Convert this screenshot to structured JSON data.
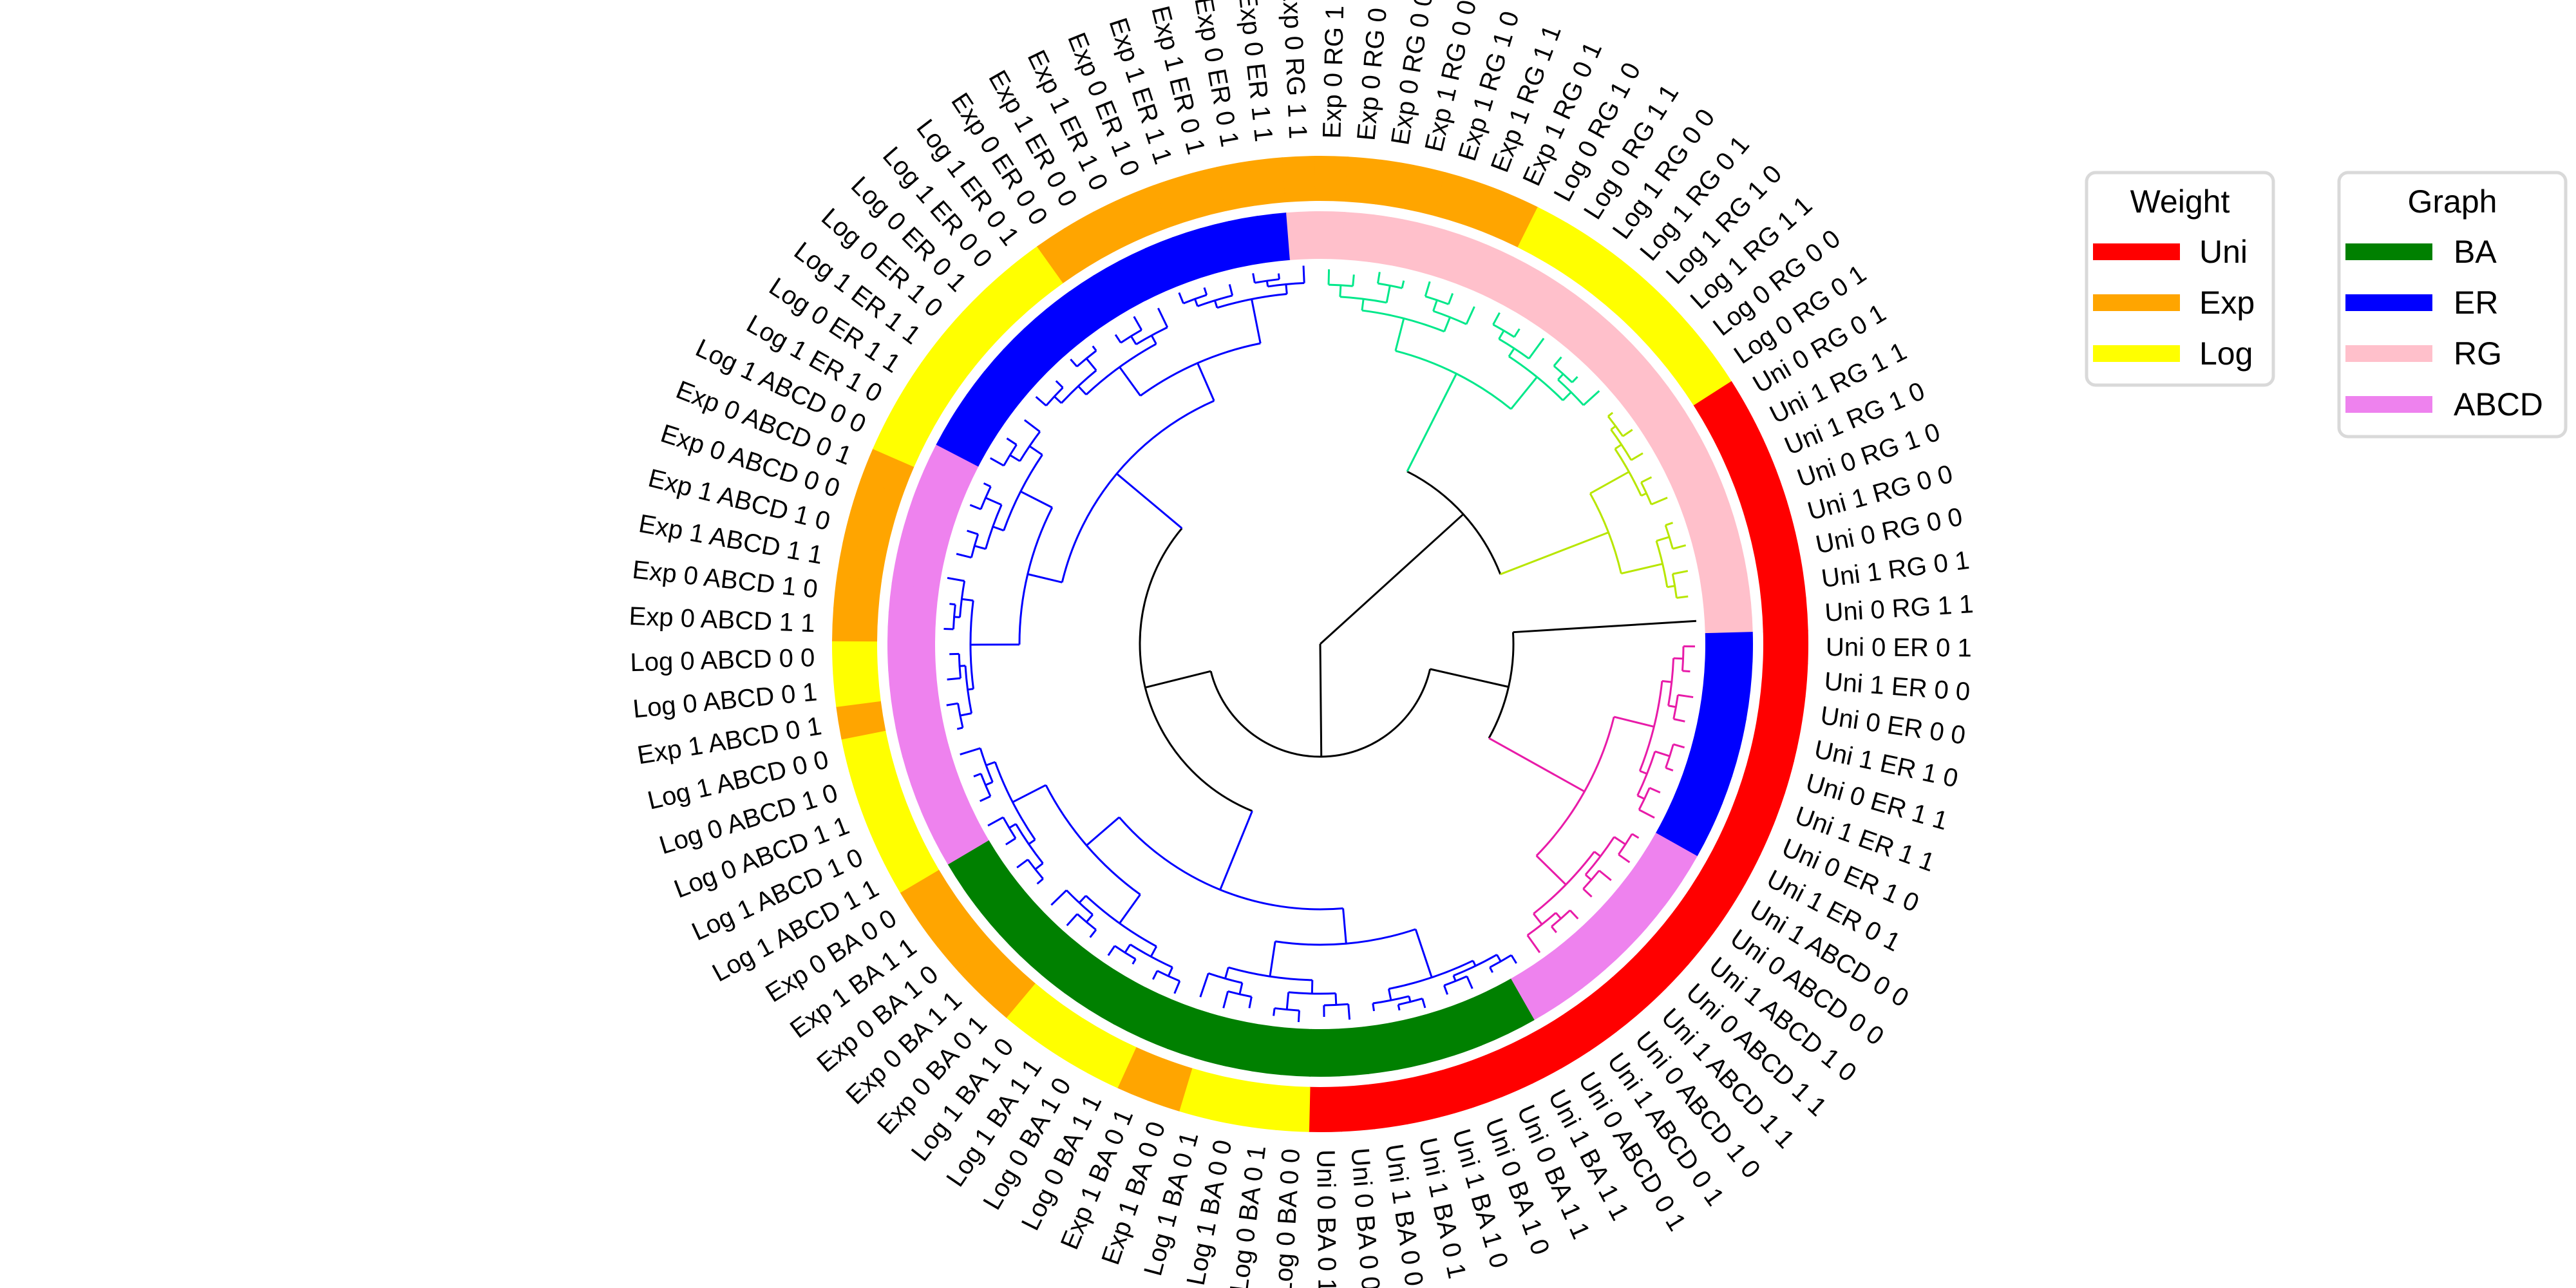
{
  "leaves": [
    {
      "label": "Uni 0 RG 1 1",
      "weight": "Uni",
      "graph": "RG"
    },
    {
      "label": "Uni 0 ER 0 1",
      "weight": "Uni",
      "graph": "ER"
    },
    {
      "label": "Uni 1 ER 0 0",
      "weight": "Uni",
      "graph": "ER"
    },
    {
      "label": "Uni 0 ER 0 0",
      "weight": "Uni",
      "graph": "ER"
    },
    {
      "label": "Uni 1 ER 1 0",
      "weight": "Uni",
      "graph": "ER"
    },
    {
      "label": "Uni 0 ER 1 1",
      "weight": "Uni",
      "graph": "ER"
    },
    {
      "label": "Uni 1 ER 1 1",
      "weight": "Uni",
      "graph": "ER"
    },
    {
      "label": "Uni 0 ER 1 0",
      "weight": "Uni",
      "graph": "ER"
    },
    {
      "label": "Uni 1 ER 0 1",
      "weight": "Uni",
      "graph": "ER"
    },
    {
      "label": "Uni 1 ABCD 0 0",
      "weight": "Uni",
      "graph": "ABCD"
    },
    {
      "label": "Uni 0 ABCD 0 0",
      "weight": "Uni",
      "graph": "ABCD"
    },
    {
      "label": "Uni 1 ABCD 1 0",
      "weight": "Uni",
      "graph": "ABCD"
    },
    {
      "label": "Uni 0 ABCD 1 1",
      "weight": "Uni",
      "graph": "ABCD"
    },
    {
      "label": "Uni 1 ABCD 1 1",
      "weight": "Uni",
      "graph": "ABCD"
    },
    {
      "label": "Uni 0 ABCD 1 0",
      "weight": "Uni",
      "graph": "ABCD"
    },
    {
      "label": "Uni 1 ABCD 0 1",
      "weight": "Uni",
      "graph": "ABCD"
    },
    {
      "label": "Uni 0 ABCD 0 1",
      "weight": "Uni",
      "graph": "ABCD"
    },
    {
      "label": "Uni 1 BA 1 1",
      "weight": "Uni",
      "graph": "BA"
    },
    {
      "label": "Uni 0 BA 1 1",
      "weight": "Uni",
      "graph": "BA"
    },
    {
      "label": "Uni 0 BA 1 0",
      "weight": "Uni",
      "graph": "BA"
    },
    {
      "label": "Uni 1 BA 1 0",
      "weight": "Uni",
      "graph": "BA"
    },
    {
      "label": "Uni 1 BA 0 1",
      "weight": "Uni",
      "graph": "BA"
    },
    {
      "label": "Uni 1 BA 0 0",
      "weight": "Uni",
      "graph": "BA"
    },
    {
      "label": "Uni 0 BA 0 0",
      "weight": "Uni",
      "graph": "BA"
    },
    {
      "label": "Uni 0 BA 0 1",
      "weight": "Uni",
      "graph": "BA"
    },
    {
      "label": "Log 0 BA 0 0",
      "weight": "Log",
      "graph": "BA"
    },
    {
      "label": "Log 0 BA 0 1",
      "weight": "Log",
      "graph": "BA"
    },
    {
      "label": "Log 1 BA 0 0",
      "weight": "Log",
      "graph": "BA"
    },
    {
      "label": "Log 1 BA 0 1",
      "weight": "Log",
      "graph": "BA"
    },
    {
      "label": "Exp 1 BA 0 0",
      "weight": "Exp",
      "graph": "BA"
    },
    {
      "label": "Exp 1 BA 0 1",
      "weight": "Exp",
      "graph": "BA"
    },
    {
      "label": "Log 0 BA 1 1",
      "weight": "Log",
      "graph": "BA"
    },
    {
      "label": "Log 0 BA 1 0",
      "weight": "Log",
      "graph": "BA"
    },
    {
      "label": "Log 1 BA 1 1",
      "weight": "Log",
      "graph": "BA"
    },
    {
      "label": "Log 1 BA 1 0",
      "weight": "Log",
      "graph": "BA"
    },
    {
      "label": "Exp 0 BA 0 1",
      "weight": "Exp",
      "graph": "BA"
    },
    {
      "label": "Exp 0 BA 1 1",
      "weight": "Exp",
      "graph": "BA"
    },
    {
      "label": "Exp 0 BA 1 0",
      "weight": "Exp",
      "graph": "BA"
    },
    {
      "label": "Exp 1 BA 1 1",
      "weight": "Exp",
      "graph": "BA"
    },
    {
      "label": "Exp 0 BA 0 0",
      "weight": "Exp",
      "graph": "BA"
    },
    {
      "label": "Log 1 ABCD 1 1",
      "weight": "Log",
      "graph": "ABCD"
    },
    {
      "label": "Log 1 ABCD 1 0",
      "weight": "Log",
      "graph": "ABCD"
    },
    {
      "label": "Log 0 ABCD 1 1",
      "weight": "Log",
      "graph": "ABCD"
    },
    {
      "label": "Log 0 ABCD 1 0",
      "weight": "Log",
      "graph": "ABCD"
    },
    {
      "label": "Log 1 ABCD 0 0",
      "weight": "Log",
      "graph": "ABCD"
    },
    {
      "label": "Exp 1 ABCD 0 1",
      "weight": "Exp",
      "graph": "ABCD"
    },
    {
      "label": "Log 0 ABCD 0 1",
      "weight": "Log",
      "graph": "ABCD"
    },
    {
      "label": "Log 0 ABCD 0 0",
      "weight": "Log",
      "graph": "ABCD"
    },
    {
      "label": "Exp 0 ABCD 1 1",
      "weight": "Exp",
      "graph": "ABCD"
    },
    {
      "label": "Exp 0 ABCD 1 0",
      "weight": "Exp",
      "graph": "ABCD"
    },
    {
      "label": "Exp 1 ABCD 1 1",
      "weight": "Exp",
      "graph": "ABCD"
    },
    {
      "label": "Exp 1 ABCD 1 0",
      "weight": "Exp",
      "graph": "ABCD"
    },
    {
      "label": "Exp 0 ABCD 0 0",
      "weight": "Exp",
      "graph": "ABCD"
    },
    {
      "label": "Exp 0 ABCD 0 1",
      "weight": "Exp",
      "graph": "ABCD"
    },
    {
      "label": "Log 1 ABCD 0 0",
      "weight": "Log",
      "graph": "ABCD"
    },
    {
      "label": "Log 1 ER 1 0",
      "weight": "Log",
      "graph": "ER"
    },
    {
      "label": "Log 0 ER 1 1",
      "weight": "Log",
      "graph": "ER"
    },
    {
      "label": "Log 1 ER 1 1",
      "weight": "Log",
      "graph": "ER"
    },
    {
      "label": "Log 0 ER 1 0",
      "weight": "Log",
      "graph": "ER"
    },
    {
      "label": "Log 0 ER 0 1",
      "weight": "Log",
      "graph": "ER"
    },
    {
      "label": "Log 1 ER 0 0",
      "weight": "Log",
      "graph": "ER"
    },
    {
      "label": "Log 1 ER 0 1",
      "weight": "Log",
      "graph": "ER"
    },
    {
      "label": "Exp 0 ER 0 0",
      "weight": "Exp",
      "graph": "ER"
    },
    {
      "label": "Exp 1 ER 0 0",
      "weight": "Exp",
      "graph": "ER"
    },
    {
      "label": "Exp 1 ER 1 0",
      "weight": "Exp",
      "graph": "ER"
    },
    {
      "label": "Exp 0 ER 1 0",
      "weight": "Exp",
      "graph": "ER"
    },
    {
      "label": "Exp 1 ER 1 1",
      "weight": "Exp",
      "graph": "ER"
    },
    {
      "label": "Exp 1 ER 0 1",
      "weight": "Exp",
      "graph": "ER"
    },
    {
      "label": "Exp 0 ER 0 1",
      "weight": "Exp",
      "graph": "ER"
    },
    {
      "label": "Exp 0 ER 1 1",
      "weight": "Exp",
      "graph": "ER"
    },
    {
      "label": "Exp 0 RG 1 1",
      "weight": "Exp",
      "graph": "RG"
    },
    {
      "label": "Exp 0 RG 1 0",
      "weight": "Exp",
      "graph": "RG"
    },
    {
      "label": "Exp 0 RG 0 1",
      "weight": "Exp",
      "graph": "RG"
    },
    {
      "label": "Exp 0 RG 0 0",
      "weight": "Exp",
      "graph": "RG"
    },
    {
      "label": "Exp 1 RG 0 0",
      "weight": "Exp",
      "graph": "RG"
    },
    {
      "label": "Exp 1 RG 1 0",
      "weight": "Exp",
      "graph": "RG"
    },
    {
      "label": "Exp 1 RG 1 1",
      "weight": "Exp",
      "graph": "RG"
    },
    {
      "label": "Exp 1 RG 0 1",
      "weight": "Exp",
      "graph": "RG"
    },
    {
      "label": "Log 0 RG 1 0",
      "weight": "Log",
      "graph": "RG"
    },
    {
      "label": "Log 0 RG 1 1",
      "weight": "Log",
      "graph": "RG"
    },
    {
      "label": "Log 1 RG 0 0",
      "weight": "Log",
      "graph": "RG"
    },
    {
      "label": "Log 1 RG 0 1",
      "weight": "Log",
      "graph": "RG"
    },
    {
      "label": "Log 1 RG 1 0",
      "weight": "Log",
      "graph": "RG"
    },
    {
      "label": "Log 1 RG 1 1",
      "weight": "Log",
      "graph": "RG"
    },
    {
      "label": "Log 0 RG 0 0",
      "weight": "Log",
      "graph": "RG"
    },
    {
      "label": "Log 0 RG 0 1",
      "weight": "Log",
      "graph": "RG"
    },
    {
      "label": "Uni 0 RG 0 1",
      "weight": "Uni",
      "graph": "RG"
    },
    {
      "label": "Uni 1 RG 1 1",
      "weight": "Uni",
      "graph": "RG"
    },
    {
      "label": "Uni 1 RG 1 0",
      "weight": "Uni",
      "graph": "RG"
    },
    {
      "label": "Uni 0 RG 1 0",
      "weight": "Uni",
      "graph": "RG"
    },
    {
      "label": "Uni 1 RG 0 0",
      "weight": "Uni",
      "graph": "RG"
    },
    {
      "label": "Uni 0 RG 0 0",
      "weight": "Uni",
      "graph": "RG"
    },
    {
      "label": "Uni 1 RG 0 1",
      "weight": "Uni",
      "graph": "RG"
    }
  ],
  "legend_weight": {
    "title": "Weight",
    "items": [
      {
        "label": "Uni",
        "color": "#ff0000"
      },
      {
        "label": "Exp",
        "color": "#ffa500"
      },
      {
        "label": "Log",
        "color": "#ffff00"
      }
    ]
  },
  "legend_graph": {
    "title": "Graph",
    "items": [
      {
        "label": "BA",
        "color": "#008000"
      },
      {
        "label": "ER",
        "color": "#0000ff"
      },
      {
        "label": "RG",
        "color": "#ffc0cb"
      },
      {
        "label": "ABCD",
        "color": "#ee82ee"
      }
    ]
  },
  "colors": {
    "weight": {
      "Uni": "#ff0000",
      "Exp": "#ffa500",
      "Log": "#ffff00"
    },
    "graph": {
      "BA": "#008000",
      "ER": "#0000ff",
      "RG": "#ffc0cb",
      "ABCD": "#ee82ee"
    },
    "tree_root": "#000000",
    "tree_blue_cluster": "#0000ff",
    "tree_magenta_cluster": "#e81ba8",
    "tree_green_cluster": "#00e88a",
    "tree_yellow_cluster": "#b8e600"
  },
  "clusters": [
    {
      "name": "blue",
      "color": "#0000ff",
      "from_leaf": 16,
      "to_leaf": 70
    },
    {
      "name": "magenta",
      "color": "#e81ba8",
      "from_leaf": 1,
      "to_leaf": 15
    },
    {
      "name": "green",
      "color": "#00e88a",
      "from_leaf": 71,
      "to_leaf": 83
    },
    {
      "name": "yellow",
      "color": "#b8e600",
      "from_leaf": 84,
      "to_leaf": 92
    }
  ]
}
